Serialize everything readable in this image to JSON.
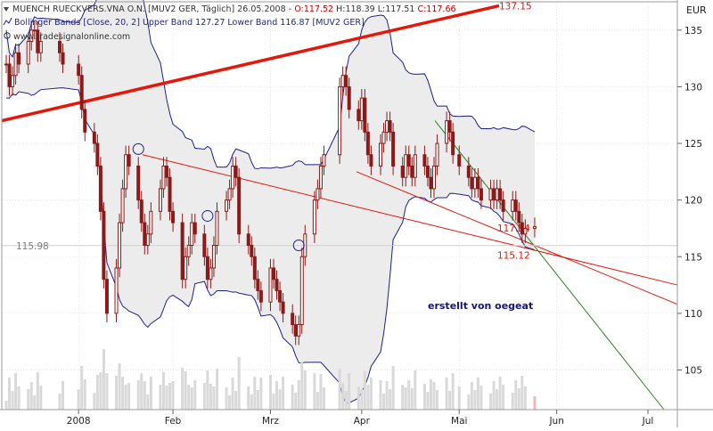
{
  "header": {
    "title": "MUENCH RUECKVERS.VNA O.N. [MUV2 GER, Täglich] 26.05.2008 -",
    "o": "O:117.52",
    "hl": "H:118.39 L:117.51",
    "c": "C:117.66",
    "bollinger": "Bollinger Bands [Close, 20, 2] Upper Band 127.27 Lower Band 116.87 [MUV2 GER]",
    "website": "www.tradesignalonline.com"
  },
  "colors": {
    "candle": "#8b1a1a",
    "band_line": "#1c1f8c",
    "band_fill": "#ececec",
    "volume": "#d9d9d9",
    "volume_last": "#f2b6b6",
    "trendline_thick": "#e3170a",
    "trendline_thin": "#e3170a",
    "trendline_green": "#2e7d1f",
    "grid": "#d8d8d8",
    "annotation_text": "#14147a"
  },
  "chart_data": {
    "type": "candlestick",
    "currency_label": "EUR",
    "y_ticks": [
      105,
      110,
      115,
      120,
      125,
      130,
      135
    ],
    "ylim": [
      101.5,
      137.5
    ],
    "x_tick_labels": [
      "2008",
      "Feb",
      "Mrz",
      "Apr",
      "Mai",
      "Jun",
      "Jul"
    ],
    "x_tick_dates": [
      "2008-01-02",
      "2008-02-01",
      "2008-03-03",
      "2008-04-01",
      "2008-05-02",
      "2008-06-02",
      "2008-07-01"
    ],
    "dates": [
      "2007-12-10",
      "2007-12-11",
      "2007-12-12",
      "2007-12-13",
      "2007-12-14",
      "2007-12-17",
      "2007-12-18",
      "2007-12-19",
      "2007-12-20",
      "2007-12-21",
      "2007-12-27",
      "2007-12-28",
      "2008-01-02",
      "2008-01-03",
      "2008-01-04",
      "2008-01-07",
      "2008-01-08",
      "2008-01-09",
      "2008-01-10",
      "2008-01-11",
      "2008-01-14",
      "2008-01-15",
      "2008-01-16",
      "2008-01-17",
      "2008-01-18",
      "2008-01-21",
      "2008-01-22",
      "2008-01-23",
      "2008-01-24",
      "2008-01-25",
      "2008-01-28",
      "2008-01-29",
      "2008-01-30",
      "2008-01-31",
      "2008-02-01",
      "2008-02-04",
      "2008-02-05",
      "2008-02-06",
      "2008-02-07",
      "2008-02-08",
      "2008-02-11",
      "2008-02-12",
      "2008-02-13",
      "2008-02-14",
      "2008-02-15",
      "2008-02-18",
      "2008-02-19",
      "2008-02-20",
      "2008-02-21",
      "2008-02-22",
      "2008-02-25",
      "2008-02-26",
      "2008-02-27",
      "2008-02-28",
      "2008-02-29",
      "2008-03-03",
      "2008-03-04",
      "2008-03-05",
      "2008-03-06",
      "2008-03-07",
      "2008-03-10",
      "2008-03-11",
      "2008-03-12",
      "2008-03-13",
      "2008-03-14",
      "2008-03-17",
      "2008-03-18",
      "2008-03-19",
      "2008-03-20",
      "2008-03-25",
      "2008-03-26",
      "2008-03-27",
      "2008-03-28",
      "2008-03-31",
      "2008-04-01",
      "2008-04-02",
      "2008-04-03",
      "2008-04-04",
      "2008-04-07",
      "2008-04-08",
      "2008-04-09",
      "2008-04-10",
      "2008-04-11",
      "2008-04-14",
      "2008-04-15",
      "2008-04-16",
      "2008-04-17",
      "2008-04-18",
      "2008-04-21",
      "2008-04-22",
      "2008-04-23",
      "2008-04-24",
      "2008-04-25",
      "2008-04-28",
      "2008-04-29",
      "2008-04-30",
      "2008-05-02",
      "2008-05-05",
      "2008-05-06",
      "2008-05-07",
      "2008-05-08",
      "2008-05-09",
      "2008-05-12",
      "2008-05-13",
      "2008-05-14",
      "2008-05-15",
      "2008-05-16",
      "2008-05-19",
      "2008-05-20",
      "2008-05-21",
      "2008-05-22",
      "2008-05-23",
      "2008-05-26"
    ],
    "closes": [
      132,
      130,
      131,
      133,
      132,
      134,
      135,
      135,
      133,
      134,
      133,
      132,
      131,
      128,
      126,
      125,
      123,
      119,
      113,
      110,
      114,
      118,
      121,
      124,
      123,
      120,
      118,
      116,
      117,
      119,
      121,
      123,
      122,
      119,
      118,
      113,
      115,
      116,
      118,
      117,
      115,
      113,
      114,
      116,
      119,
      120,
      121,
      123,
      122,
      117,
      116,
      115,
      113,
      112,
      111,
      114,
      113,
      112,
      111,
      110,
      109,
      108,
      109,
      115,
      117,
      120,
      121,
      123,
      124,
      130,
      131,
      130,
      128,
      127,
      129,
      126,
      124,
      123,
      125,
      126,
      127,
      126,
      123,
      122,
      124,
      123,
      122,
      124,
      123,
      122,
      121,
      123,
      125,
      127,
      126,
      124,
      123,
      122,
      121,
      122,
      121,
      120,
      121,
      120,
      121,
      120,
      119,
      120,
      119,
      118,
      117,
      117.5,
      117.66
    ],
    "band_values": {
      "Upper Band": 127.27,
      "Lower Band": 116.87
    },
    "volume_bars": 112,
    "horizontal_line": {
      "label": "115.98",
      "value": 115.98
    },
    "annotations": [
      {
        "text": "137.15",
        "value": 137.15
      },
      {
        "text": "117.54",
        "value": 117.54
      },
      {
        "text": "115.12",
        "value": 115.12
      },
      {
        "text": "erstellt von oegeat"
      }
    ]
  }
}
